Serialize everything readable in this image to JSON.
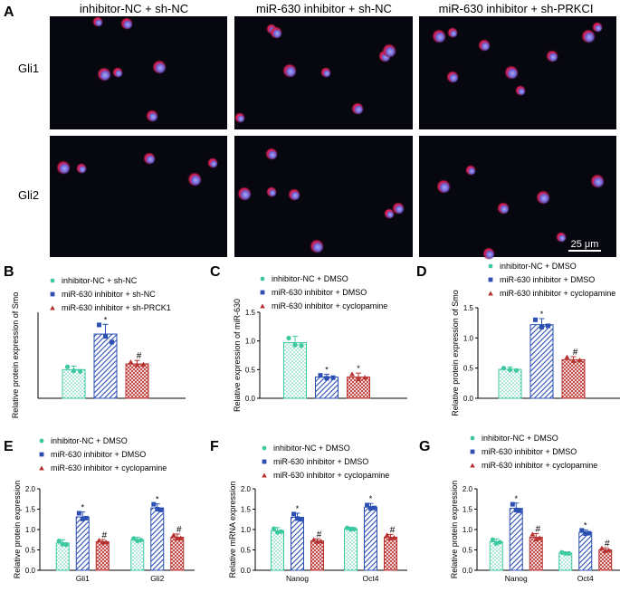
{
  "colors": {
    "green": "#3cc8a0",
    "blue": "#2b4fb3",
    "red": "#b8302e",
    "micro_bg": "#07070f"
  },
  "panel_A": {
    "letter": "A",
    "column_labels": [
      "inhibitor-NC + sh-NC",
      "miR-630 inhibitor + sh-NC",
      "miR-630 inhibitor + sh-PRKCI"
    ],
    "row_labels": [
      "Gli1",
      "Gli2"
    ],
    "scale_bar": "25 μm"
  },
  "chart_data": [
    {
      "letter": "B",
      "type": "bar",
      "ylabel": "Relative protein expression of Smo",
      "ylim": [
        0,
        1.5
      ],
      "ticks": [],
      "grid": false,
      "legend": [
        "inhibitor-NC + sh-NC",
        "miR-630 inhibitor + sh-NC",
        "miR-630 inhibitor + sh-PRCK1"
      ],
      "categories": [
        ""
      ],
      "series": [
        {
          "name": "inhibitor-NC + sh-NC",
          "values": [
            0.5
          ],
          "errors": [
            0.06
          ],
          "points": [
            [
              0.55,
              0.48,
              0.47
            ]
          ],
          "mark": ""
        },
        {
          "name": "miR-630 inhibitor + sh-NC",
          "values": [
            1.12
          ],
          "errors": [
            0.17
          ],
          "points": [
            [
              1.28,
              1.08,
              0.98
            ]
          ],
          "mark": "*"
        },
        {
          "name": "miR-630 inhibitor + sh-PRCK1",
          "values": [
            0.6
          ],
          "errors": [
            0.06
          ],
          "points": [
            [
              0.63,
              0.58,
              0.59
            ]
          ],
          "mark": "#"
        }
      ]
    },
    {
      "letter": "C",
      "type": "bar",
      "ylabel": "Relative expression of miR-630",
      "ylim": [
        0,
        1.5
      ],
      "ticks": [
        "0.0",
        "0.5",
        "1.0",
        "1.5"
      ],
      "grid": false,
      "legend": [
        "inhibitor-NC + DMSO",
        "miR-630 inhibitor + DMSO",
        "miR-630 inhibitor + cyclopamine"
      ],
      "categories": [
        ""
      ],
      "series": [
        {
          "name": "inhibitor-NC + DMSO",
          "values": [
            0.97
          ],
          "errors": [
            0.11
          ],
          "points": [
            [
              1.05,
              0.93,
              0.92
            ]
          ],
          "mark": ""
        },
        {
          "name": "miR-630 inhibitor + DMSO",
          "values": [
            0.37
          ],
          "errors": [
            0.05
          ],
          "points": [
            [
              0.4,
              0.35,
              0.36
            ]
          ],
          "mark": "*"
        },
        {
          "name": "miR-630 inhibitor + cyclopamine",
          "values": [
            0.37
          ],
          "errors": [
            0.07
          ],
          "points": [
            [
              0.42,
              0.33,
              0.36
            ]
          ],
          "mark": "*"
        }
      ]
    },
    {
      "letter": "D",
      "type": "bar",
      "ylabel": "Relative protein expression of Smo",
      "ylim": [
        0,
        1.5
      ],
      "ticks": [
        "0.0",
        "0.5",
        "1.0",
        "1.5"
      ],
      "grid": false,
      "legend": [
        "inhibitor-NC + DMSO",
        "miR-630 inhibitor + DMSO",
        "miR-630 inhibitor + cyclopamine"
      ],
      "categories": [
        ""
      ],
      "series": [
        {
          "name": "inhibitor-NC + DMSO",
          "values": [
            0.48
          ],
          "errors": [
            0.04
          ],
          "points": [
            [
              0.5,
              0.47,
              0.46
            ]
          ],
          "mark": ""
        },
        {
          "name": "miR-630 inhibitor + DMSO",
          "values": [
            1.22
          ],
          "errors": [
            0.1
          ],
          "points": [
            [
              1.3,
              1.18,
              1.2
            ]
          ],
          "mark": "*"
        },
        {
          "name": "miR-630 inhibitor + cyclopamine",
          "values": [
            0.64
          ],
          "errors": [
            0.05
          ],
          "points": [
            [
              0.68,
              0.62,
              0.63
            ]
          ],
          "mark": "#"
        }
      ]
    },
    {
      "letter": "E",
      "type": "bar",
      "ylabel": "Relative protein expression",
      "ylim": [
        0,
        2.0
      ],
      "ticks": [
        "0.0",
        "0.5",
        "1.0",
        "1.5",
        "2.0"
      ],
      "grid": false,
      "legend": [
        "inhibitor-NC + DMSO",
        "miR-630 inhibitor + DMSO",
        "miR-630 inhibitor + cyclopamine"
      ],
      "categories": [
        "Gli1",
        "Gli2"
      ],
      "series": [
        {
          "name": "inhibitor-NC + DMSO",
          "values": [
            0.67,
            0.75
          ],
          "errors": [
            0.08,
            0.06
          ],
          "points": [
            [
              0.72,
              0.64,
              0.63
            ],
            [
              0.78,
              0.72,
              0.74
            ]
          ],
          "mark": ""
        },
        {
          "name": "miR-630 inhibitor + DMSO",
          "values": [
            1.31,
            1.53
          ],
          "errors": [
            0.12,
            0.1
          ],
          "points": [
            [
              1.4,
              1.26,
              1.28
            ],
            [
              1.62,
              1.5,
              1.48
            ]
          ],
          "mark": "*"
        },
        {
          "name": "miR-630 inhibitor + cyclopamine",
          "values": [
            0.7,
            0.81
          ],
          "errors": [
            0.05,
            0.08
          ],
          "points": [
            [
              0.73,
              0.68,
              0.69
            ],
            [
              0.86,
              0.78,
              0.79
            ]
          ],
          "mark": "#"
        }
      ]
    },
    {
      "letter": "F",
      "type": "bar",
      "ylabel": "Relative mRNA expression",
      "ylim": [
        0,
        2.0
      ],
      "ticks": [
        "0.0",
        "0.5",
        "1.0",
        "1.5",
        "2.0"
      ],
      "grid": false,
      "legend": [
        "inhibitor-NC + DMSO",
        "miR-630 inhibitor + DMSO",
        "miR-630 inhibitor + cyclopamine"
      ],
      "categories": [
        "Nanog",
        "Oct4"
      ],
      "series": [
        {
          "name": "inhibitor-NC + DMSO",
          "values": [
            0.97,
            1.02
          ],
          "errors": [
            0.08,
            0.04
          ],
          "points": [
            [
              1.02,
              0.93,
              0.95
            ],
            [
              1.04,
              1.0,
              1.01
            ]
          ],
          "mark": ""
        },
        {
          "name": "miR-630 inhibitor + DMSO",
          "values": [
            1.3,
            1.55
          ],
          "errors": [
            0.1,
            0.09
          ],
          "points": [
            [
              1.38,
              1.27,
              1.25
            ],
            [
              1.6,
              1.52,
              1.53
            ]
          ],
          "mark": "*"
        },
        {
          "name": "miR-630 inhibitor + cyclopamine",
          "values": [
            0.72,
            0.81
          ],
          "errors": [
            0.05,
            0.07
          ],
          "points": [
            [
              0.75,
              0.7,
              0.71
            ],
            [
              0.86,
              0.78,
              0.8
            ]
          ],
          "mark": "#"
        }
      ]
    },
    {
      "letter": "G",
      "type": "bar",
      "ylabel": "Relative protein expression",
      "ylim": [
        0,
        2.0
      ],
      "ticks": [
        "0.0",
        "0.5",
        "1.0",
        "1.5",
        "2.0"
      ],
      "grid": false,
      "legend": [
        "inhibitor-NC + DMSO",
        "miR-630 inhibitor + DMSO",
        "miR-630 inhibitor + cyclopamine"
      ],
      "categories": [
        "Nanog",
        "Oct4"
      ],
      "series": [
        {
          "name": "inhibitor-NC + DMSO",
          "values": [
            0.7,
            0.42
          ],
          "errors": [
            0.07,
            0.03
          ],
          "points": [
            [
              0.75,
              0.66,
              0.69
            ],
            [
              0.44,
              0.41,
              0.41
            ]
          ],
          "mark": ""
        },
        {
          "name": "miR-630 inhibitor + DMSO",
          "values": [
            1.52,
            0.93
          ],
          "errors": [
            0.13,
            0.06
          ],
          "points": [
            [
              1.62,
              1.48,
              1.46
            ],
            [
              0.98,
              0.9,
              0.91
            ]
          ],
          "mark": "*"
        },
        {
          "name": "miR-630 inhibitor + cyclopamine",
          "values": [
            0.81,
            0.5
          ],
          "errors": [
            0.09,
            0.05
          ],
          "points": [
            [
              0.88,
              0.76,
              0.79
            ],
            [
              0.54,
              0.47,
              0.49
            ]
          ],
          "mark": "#"
        }
      ]
    }
  ]
}
